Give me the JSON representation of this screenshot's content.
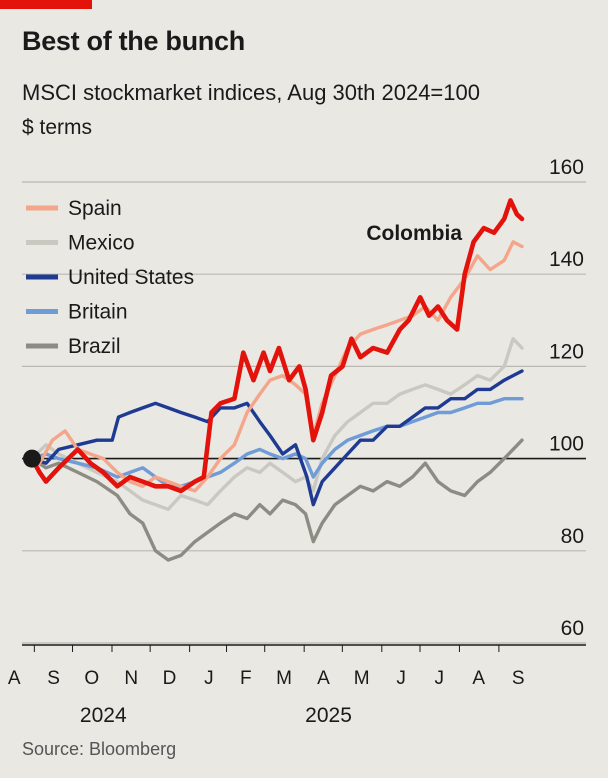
{
  "header": {
    "title": "Best of the bunch",
    "subtitle": "MSCI stockmarket indices, Aug 30th 2024=100",
    "unit": "$ terms"
  },
  "footer": {
    "source": "Source: Bloomberg"
  },
  "colors": {
    "Spain": "#f4a58a",
    "Mexico": "#c9c9c2",
    "United States": "#1f3a93",
    "Britain": "#6f9bd6",
    "Brazil": "#8c8c84",
    "Colombia": "#e3120b",
    "accent": "#e3120b"
  },
  "chart_data": {
    "type": "line",
    "ylim": [
      60,
      160
    ],
    "yticks": [
      60,
      80,
      100,
      120,
      140,
      160
    ],
    "x_start": "2024-08-30",
    "x_end": "2025-09-19",
    "xtick_labels": [
      {
        "label": "A",
        "date": "2024-08-16"
      },
      {
        "label": "S",
        "date": "2024-09-16"
      },
      {
        "label": "O",
        "date": "2024-10-16"
      },
      {
        "label": "N",
        "date": "2024-11-16"
      },
      {
        "label": "D",
        "date": "2024-12-16"
      },
      {
        "label": "J",
        "date": "2025-01-16"
      },
      {
        "label": "F",
        "date": "2025-02-14"
      },
      {
        "label": "M",
        "date": "2025-03-16"
      },
      {
        "label": "A",
        "date": "2025-04-16"
      },
      {
        "label": "M",
        "date": "2025-05-16"
      },
      {
        "label": "J",
        "date": "2025-06-16"
      },
      {
        "label": "J",
        "date": "2025-07-16"
      },
      {
        "label": "A",
        "date": "2025-08-16"
      },
      {
        "label": "S",
        "date": "2025-09-16"
      }
    ],
    "year_labels": [
      {
        "label": "2024",
        "date": "2024-10-25"
      },
      {
        "label": "2025",
        "date": "2025-04-20"
      }
    ],
    "legend": [
      "Spain",
      "Mexico",
      "United States",
      "Britain",
      "Brazil"
    ],
    "annotations": [
      {
        "text": "Colombia",
        "series": "Colombia"
      }
    ],
    "base_value": 100,
    "series": [
      {
        "name": "Brazil",
        "points": [
          [
            "2024-08-30",
            100
          ],
          [
            "2024-09-10",
            98
          ],
          [
            "2024-09-20",
            99
          ],
          [
            "2024-10-05",
            97
          ],
          [
            "2024-10-20",
            95
          ],
          [
            "2024-11-05",
            92
          ],
          [
            "2024-11-15",
            88
          ],
          [
            "2024-11-25",
            86
          ],
          [
            "2024-12-05",
            80
          ],
          [
            "2024-12-15",
            78
          ],
          [
            "2024-12-25",
            79
          ],
          [
            "2025-01-05",
            82
          ],
          [
            "2025-01-15",
            84
          ],
          [
            "2025-01-25",
            86
          ],
          [
            "2025-02-05",
            88
          ],
          [
            "2025-02-15",
            87
          ],
          [
            "2025-02-25",
            90
          ],
          [
            "2025-03-05",
            88
          ],
          [
            "2025-03-15",
            91
          ],
          [
            "2025-03-25",
            90
          ],
          [
            "2025-04-02",
            88
          ],
          [
            "2025-04-08",
            82
          ],
          [
            "2025-04-15",
            86
          ],
          [
            "2025-04-25",
            90
          ],
          [
            "2025-05-05",
            92
          ],
          [
            "2025-05-15",
            94
          ],
          [
            "2025-05-25",
            93
          ],
          [
            "2025-06-05",
            95
          ],
          [
            "2025-06-15",
            94
          ],
          [
            "2025-06-25",
            96
          ],
          [
            "2025-07-05",
            99
          ],
          [
            "2025-07-15",
            95
          ],
          [
            "2025-07-25",
            93
          ],
          [
            "2025-08-05",
            92
          ],
          [
            "2025-08-15",
            95
          ],
          [
            "2025-08-25",
            97
          ],
          [
            "2025-09-05",
            100
          ],
          [
            "2025-09-19",
            104
          ]
        ]
      },
      {
        "name": "Mexico",
        "points": [
          [
            "2024-08-30",
            100
          ],
          [
            "2024-09-10",
            103
          ],
          [
            "2024-09-20",
            101
          ],
          [
            "2024-10-05",
            99
          ],
          [
            "2024-10-20",
            97
          ],
          [
            "2024-11-05",
            95
          ],
          [
            "2024-11-15",
            93
          ],
          [
            "2024-11-25",
            91
          ],
          [
            "2024-12-05",
            90
          ],
          [
            "2024-12-15",
            89
          ],
          [
            "2024-12-25",
            92
          ],
          [
            "2025-01-05",
            91
          ],
          [
            "2025-01-15",
            90
          ],
          [
            "2025-01-25",
            93
          ],
          [
            "2025-02-05",
            96
          ],
          [
            "2025-02-15",
            98
          ],
          [
            "2025-02-25",
            97
          ],
          [
            "2025-03-05",
            99
          ],
          [
            "2025-03-15",
            97
          ],
          [
            "2025-03-25",
            95
          ],
          [
            "2025-04-02",
            96
          ],
          [
            "2025-04-08",
            93
          ],
          [
            "2025-04-15",
            100
          ],
          [
            "2025-04-25",
            105
          ],
          [
            "2025-05-05",
            108
          ],
          [
            "2025-05-15",
            110
          ],
          [
            "2025-05-25",
            112
          ],
          [
            "2025-06-05",
            112
          ],
          [
            "2025-06-15",
            114
          ],
          [
            "2025-06-25",
            115
          ],
          [
            "2025-07-05",
            116
          ],
          [
            "2025-07-15",
            115
          ],
          [
            "2025-07-25",
            114
          ],
          [
            "2025-08-05",
            116
          ],
          [
            "2025-08-15",
            118
          ],
          [
            "2025-08-25",
            117
          ],
          [
            "2025-09-05",
            120
          ],
          [
            "2025-09-12",
            126
          ],
          [
            "2025-09-19",
            124
          ]
        ]
      },
      {
        "name": "Britain",
        "points": [
          [
            "2024-08-30",
            100
          ],
          [
            "2024-09-10",
            101
          ],
          [
            "2024-09-20",
            100
          ],
          [
            "2024-10-05",
            99
          ],
          [
            "2024-10-20",
            98
          ],
          [
            "2024-11-05",
            96
          ],
          [
            "2024-11-15",
            97
          ],
          [
            "2024-11-25",
            98
          ],
          [
            "2024-12-05",
            96
          ],
          [
            "2024-12-15",
            94
          ],
          [
            "2024-12-25",
            94
          ],
          [
            "2025-01-05",
            95
          ],
          [
            "2025-01-15",
            96
          ],
          [
            "2025-01-25",
            97
          ],
          [
            "2025-02-05",
            99
          ],
          [
            "2025-02-15",
            101
          ],
          [
            "2025-02-25",
            102
          ],
          [
            "2025-03-05",
            101
          ],
          [
            "2025-03-15",
            100
          ],
          [
            "2025-03-25",
            101
          ],
          [
            "2025-04-02",
            100
          ],
          [
            "2025-04-08",
            96
          ],
          [
            "2025-04-15",
            99
          ],
          [
            "2025-04-25",
            102
          ],
          [
            "2025-05-05",
            104
          ],
          [
            "2025-05-15",
            105
          ],
          [
            "2025-05-25",
            106
          ],
          [
            "2025-06-05",
            107
          ],
          [
            "2025-06-15",
            107
          ],
          [
            "2025-06-25",
            108
          ],
          [
            "2025-07-05",
            109
          ],
          [
            "2025-07-15",
            110
          ],
          [
            "2025-07-25",
            110
          ],
          [
            "2025-08-05",
            111
          ],
          [
            "2025-08-15",
            112
          ],
          [
            "2025-08-25",
            112
          ],
          [
            "2025-09-05",
            113
          ],
          [
            "2025-09-19",
            113
          ]
        ]
      },
      {
        "name": "United States",
        "points": [
          [
            "2024-08-30",
            100
          ],
          [
            "2024-09-10",
            99
          ],
          [
            "2024-09-20",
            102
          ],
          [
            "2024-10-05",
            103
          ],
          [
            "2024-10-20",
            104
          ],
          [
            "2024-11-01",
            104
          ],
          [
            "2024-11-06",
            109
          ],
          [
            "2024-11-15",
            110
          ],
          [
            "2024-11-25",
            111
          ],
          [
            "2024-12-05",
            112
          ],
          [
            "2024-12-15",
            111
          ],
          [
            "2024-12-25",
            110
          ],
          [
            "2025-01-05",
            109
          ],
          [
            "2025-01-15",
            108
          ],
          [
            "2025-01-25",
            111
          ],
          [
            "2025-02-05",
            111
          ],
          [
            "2025-02-15",
            112
          ],
          [
            "2025-02-25",
            108
          ],
          [
            "2025-03-05",
            105
          ],
          [
            "2025-03-15",
            101
          ],
          [
            "2025-03-25",
            103
          ],
          [
            "2025-04-03",
            96
          ],
          [
            "2025-04-08",
            90
          ],
          [
            "2025-04-15",
            95
          ],
          [
            "2025-04-25",
            98
          ],
          [
            "2025-05-05",
            101
          ],
          [
            "2025-05-15",
            104
          ],
          [
            "2025-05-25",
            104
          ],
          [
            "2025-06-05",
            107
          ],
          [
            "2025-06-15",
            107
          ],
          [
            "2025-06-25",
            109
          ],
          [
            "2025-07-05",
            111
          ],
          [
            "2025-07-15",
            111
          ],
          [
            "2025-07-25",
            113
          ],
          [
            "2025-08-05",
            113
          ],
          [
            "2025-08-15",
            115
          ],
          [
            "2025-08-25",
            115
          ],
          [
            "2025-09-05",
            117
          ],
          [
            "2025-09-19",
            119
          ]
        ]
      },
      {
        "name": "Spain",
        "points": [
          [
            "2024-08-30",
            100
          ],
          [
            "2024-09-05",
            99
          ],
          [
            "2024-09-15",
            104
          ],
          [
            "2024-09-25",
            106
          ],
          [
            "2024-10-05",
            102
          ],
          [
            "2024-10-15",
            101
          ],
          [
            "2024-10-25",
            100
          ],
          [
            "2024-11-05",
            97
          ],
          [
            "2024-11-15",
            95
          ],
          [
            "2024-11-25",
            94
          ],
          [
            "2024-12-05",
            96
          ],
          [
            "2024-12-15",
            95
          ],
          [
            "2024-12-25",
            94
          ],
          [
            "2025-01-05",
            93
          ],
          [
            "2025-01-15",
            96
          ],
          [
            "2025-01-25",
            100
          ],
          [
            "2025-02-05",
            103
          ],
          [
            "2025-02-15",
            110
          ],
          [
            "2025-02-25",
            114
          ],
          [
            "2025-03-05",
            117
          ],
          [
            "2025-03-15",
            118
          ],
          [
            "2025-03-25",
            116
          ],
          [
            "2025-04-02",
            114
          ],
          [
            "2025-04-08",
            105
          ],
          [
            "2025-04-15",
            112
          ],
          [
            "2025-04-25",
            118
          ],
          [
            "2025-05-05",
            124
          ],
          [
            "2025-05-15",
            127
          ],
          [
            "2025-05-25",
            128
          ],
          [
            "2025-06-05",
            129
          ],
          [
            "2025-06-15",
            130
          ],
          [
            "2025-06-25",
            131
          ],
          [
            "2025-07-05",
            133
          ],
          [
            "2025-07-15",
            130
          ],
          [
            "2025-07-25",
            135
          ],
          [
            "2025-08-05",
            139
          ],
          [
            "2025-08-15",
            144
          ],
          [
            "2025-08-25",
            141
          ],
          [
            "2025-09-05",
            143
          ],
          [
            "2025-09-12",
            147
          ],
          [
            "2025-09-19",
            146
          ]
        ]
      },
      {
        "name": "Colombia",
        "points": [
          [
            "2024-08-30",
            100
          ],
          [
            "2024-09-05",
            97
          ],
          [
            "2024-09-10",
            95
          ],
          [
            "2024-09-20",
            98
          ],
          [
            "2024-10-05",
            102
          ],
          [
            "2024-10-15",
            99
          ],
          [
            "2024-10-25",
            97
          ],
          [
            "2024-11-05",
            94
          ],
          [
            "2024-11-15",
            96
          ],
          [
            "2024-11-25",
            95
          ],
          [
            "2024-12-05",
            94
          ],
          [
            "2024-12-15",
            94
          ],
          [
            "2024-12-25",
            93
          ],
          [
            "2025-01-05",
            95
          ],
          [
            "2025-01-12",
            96
          ],
          [
            "2025-01-18",
            110
          ],
          [
            "2025-01-25",
            112
          ],
          [
            "2025-02-05",
            113
          ],
          [
            "2025-02-12",
            123
          ],
          [
            "2025-02-20",
            117
          ],
          [
            "2025-02-28",
            123
          ],
          [
            "2025-03-05",
            119
          ],
          [
            "2025-03-12",
            124
          ],
          [
            "2025-03-20",
            117
          ],
          [
            "2025-03-28",
            120
          ],
          [
            "2025-04-02",
            115
          ],
          [
            "2025-04-08",
            104
          ],
          [
            "2025-04-15",
            110
          ],
          [
            "2025-04-22",
            118
          ],
          [
            "2025-05-01",
            120
          ],
          [
            "2025-05-08",
            126
          ],
          [
            "2025-05-15",
            122
          ],
          [
            "2025-05-25",
            124
          ],
          [
            "2025-06-05",
            123
          ],
          [
            "2025-06-15",
            128
          ],
          [
            "2025-06-22",
            130
          ],
          [
            "2025-07-01",
            135
          ],
          [
            "2025-07-08",
            131
          ],
          [
            "2025-07-15",
            133
          ],
          [
            "2025-07-22",
            130
          ],
          [
            "2025-07-30",
            128
          ],
          [
            "2025-08-05",
            140
          ],
          [
            "2025-08-12",
            147
          ],
          [
            "2025-08-20",
            150
          ],
          [
            "2025-08-28",
            149
          ],
          [
            "2025-09-05",
            152
          ],
          [
            "2025-09-10",
            156
          ],
          [
            "2025-09-15",
            153
          ],
          [
            "2025-09-19",
            152
          ]
        ]
      }
    ]
  }
}
